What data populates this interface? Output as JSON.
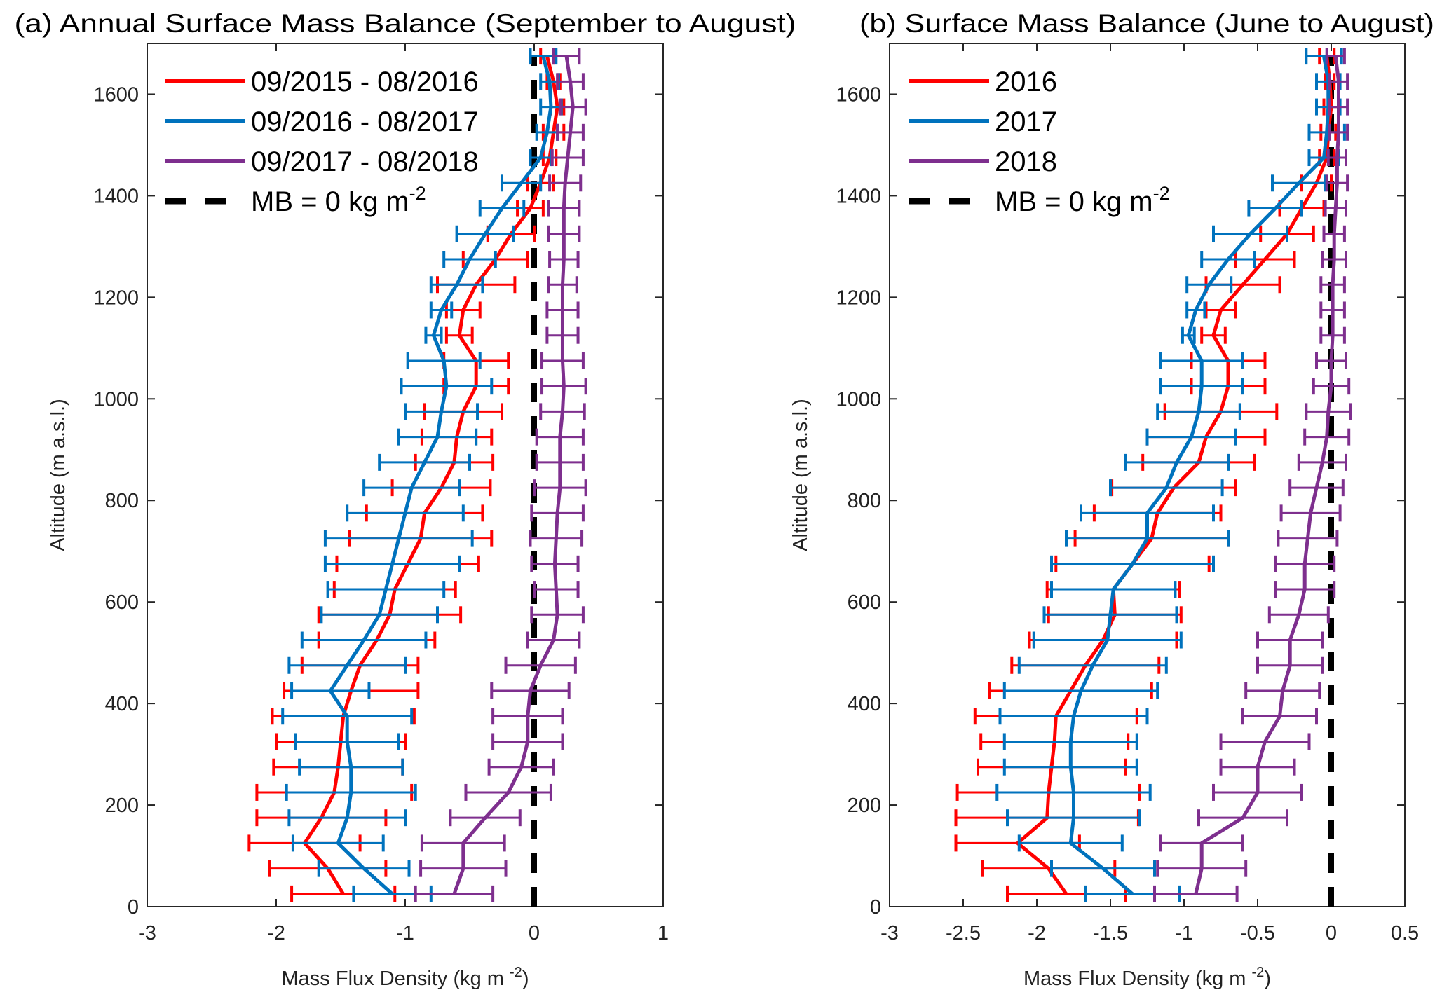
{
  "chart_data": [
    {
      "type": "line",
      "title": "(a) Annual Surface Mass Balance (September to August)",
      "xlabel": "Mass Flux Density (kg m",
      "xlabel_sup": "-2",
      "xlabel_end": ")",
      "ylabel": "Altitude (m a.s.l.)",
      "xlim": [
        -3,
        1
      ],
      "ylim": [
        0,
        1700
      ],
      "xticks": [
        -3,
        -2,
        -1,
        0,
        1
      ],
      "yticks": [
        0,
        200,
        400,
        600,
        800,
        1000,
        1200,
        1400,
        1600
      ],
      "orientation": "horizontal-profile",
      "legend_position": "top-left",
      "altitudes": [
        25,
        75,
        125,
        175,
        225,
        275,
        325,
        375,
        425,
        475,
        525,
        575,
        625,
        675,
        725,
        775,
        825,
        875,
        925,
        975,
        1025,
        1075,
        1125,
        1175,
        1225,
        1275,
        1325,
        1375,
        1425,
        1475,
        1525,
        1575,
        1625,
        1675
      ],
      "series": [
        {
          "name": "09/2015 - 08/2016",
          "color": "#ff0000",
          "values": [
            -1.48,
            -1.6,
            -1.78,
            -1.65,
            -1.55,
            -1.52,
            -1.5,
            -1.48,
            -1.42,
            -1.35,
            -1.22,
            -1.12,
            -1.08,
            -0.98,
            -0.88,
            -0.85,
            -0.72,
            -0.62,
            -0.6,
            -0.55,
            -0.45,
            -0.45,
            -0.58,
            -0.55,
            -0.45,
            -0.3,
            -0.18,
            -0.03,
            0.05,
            0.12,
            0.15,
            0.18,
            0.15,
            0.1
          ],
          "err": [
            0.4,
            0.45,
            0.43,
            0.5,
            0.6,
            0.5,
            0.5,
            0.55,
            0.52,
            0.45,
            0.45,
            0.55,
            0.47,
            0.55,
            0.55,
            0.45,
            0.38,
            0.3,
            0.27,
            0.3,
            0.25,
            0.25,
            0.1,
            0.13,
            0.3,
            0.25,
            0.18,
            0.1,
            0.1,
            0.05,
            0.08,
            0.05,
            0.05,
            0.05
          ]
        },
        {
          "name": "09/2016 - 08/2017",
          "color": "#0072bd",
          "values": [
            -1.1,
            -1.32,
            -1.52,
            -1.45,
            -1.42,
            -1.42,
            -1.45,
            -1.45,
            -1.58,
            -1.45,
            -1.32,
            -1.2,
            -1.15,
            -1.1,
            -1.05,
            -1.0,
            -0.95,
            -0.85,
            -0.75,
            -0.72,
            -0.68,
            -0.7,
            -0.78,
            -0.72,
            -0.6,
            -0.5,
            -0.38,
            -0.25,
            -0.1,
            0.05,
            0.1,
            0.13,
            0.12,
            0.07
          ],
          "err": [
            0.3,
            0.35,
            0.35,
            0.45,
            0.5,
            0.4,
            0.4,
            0.5,
            0.3,
            0.45,
            0.48,
            0.45,
            0.45,
            0.52,
            0.57,
            0.45,
            0.37,
            0.35,
            0.3,
            0.28,
            0.35,
            0.28,
            0.06,
            0.08,
            0.2,
            0.2,
            0.22,
            0.17,
            0.15,
            0.08,
            0.08,
            0.08,
            0.07,
            0.1
          ]
        },
        {
          "name": "09/2017 - 08/2018",
          "color": "#7e2f8e",
          "values": [
            -0.62,
            -0.55,
            -0.55,
            -0.38,
            -0.2,
            -0.1,
            -0.05,
            -0.05,
            -0.03,
            0.05,
            0.15,
            0.18,
            0.17,
            0.16,
            0.17,
            0.18,
            0.2,
            0.2,
            0.2,
            0.22,
            0.23,
            0.22,
            0.22,
            0.22,
            0.22,
            0.23,
            0.23,
            0.23,
            0.24,
            0.26,
            0.28,
            0.3,
            0.28,
            0.25
          ],
          "err": [
            0.3,
            0.33,
            0.32,
            0.27,
            0.33,
            0.25,
            0.27,
            0.27,
            0.3,
            0.27,
            0.2,
            0.2,
            0.17,
            0.18,
            0.2,
            0.2,
            0.2,
            0.18,
            0.18,
            0.17,
            0.17,
            0.16,
            0.12,
            0.12,
            0.11,
            0.11,
            0.12,
            0.12,
            0.12,
            0.12,
            0.1,
            0.1,
            0.1,
            0.1
          ]
        }
      ],
      "reference_line": {
        "name": "MB = 0 kg m",
        "sup": "-2",
        "x": 0,
        "color": "#000000",
        "style": "dashed"
      }
    },
    {
      "type": "line",
      "title": "(b) Surface Mass Balance (June to August)",
      "xlabel": "Mass Flux Density (kg m",
      "xlabel_sup": "-2",
      "xlabel_end": ")",
      "ylabel": "Altitude (m a.s.l.)",
      "xlim": [
        -3,
        0.5
      ],
      "ylim": [
        0,
        1700
      ],
      "xticks": [
        -3,
        -2.5,
        -2,
        -1.5,
        -1,
        -0.5,
        0,
        0.5
      ],
      "yticks": [
        0,
        200,
        400,
        600,
        800,
        1000,
        1200,
        1400,
        1600
      ],
      "orientation": "horizontal-profile",
      "legend_position": "top-left",
      "altitudes": [
        25,
        75,
        125,
        175,
        225,
        275,
        325,
        375,
        425,
        475,
        525,
        575,
        625,
        675,
        725,
        775,
        825,
        875,
        925,
        975,
        1025,
        1075,
        1125,
        1175,
        1225,
        1275,
        1325,
        1375,
        1425,
        1475,
        1525,
        1575,
        1625,
        1675
      ],
      "series": [
        {
          "name": "2016",
          "color": "#ff0000",
          "values": [
            -1.8,
            -1.92,
            -2.13,
            -1.93,
            -1.92,
            -1.9,
            -1.88,
            -1.87,
            -1.77,
            -1.67,
            -1.55,
            -1.47,
            -1.48,
            -1.35,
            -1.22,
            -1.18,
            -1.07,
            -0.9,
            -0.85,
            -0.75,
            -0.7,
            -0.7,
            -0.8,
            -0.75,
            -0.6,
            -0.45,
            -0.3,
            -0.2,
            -0.1,
            -0.03,
            -0.02,
            0.0,
            -0.01,
            -0.03
          ],
          "err": [
            0.4,
            0.45,
            0.42,
            0.62,
            0.62,
            0.5,
            0.5,
            0.55,
            0.55,
            0.5,
            0.5,
            0.45,
            0.45,
            0.52,
            0.52,
            0.43,
            0.42,
            0.38,
            0.4,
            0.38,
            0.25,
            0.25,
            0.08,
            0.1,
            0.25,
            0.2,
            0.18,
            0.15,
            0.1,
            0.05,
            0.05,
            0.05,
            0.03,
            0.05
          ]
        },
        {
          "name": "2017",
          "color": "#0072bd",
          "values": [
            -1.35,
            -1.55,
            -1.77,
            -1.75,
            -1.75,
            -1.77,
            -1.77,
            -1.75,
            -1.7,
            -1.62,
            -1.52,
            -1.5,
            -1.48,
            -1.35,
            -1.25,
            -1.25,
            -1.12,
            -1.05,
            -0.95,
            -0.9,
            -0.88,
            -0.88,
            -0.97,
            -0.92,
            -0.83,
            -0.7,
            -0.55,
            -0.38,
            -0.22,
            -0.05,
            -0.03,
            -0.02,
            -0.02,
            -0.05
          ],
          "err": [
            0.32,
            0.35,
            0.35,
            0.45,
            0.52,
            0.45,
            0.45,
            0.5,
            0.52,
            0.5,
            0.5,
            0.45,
            0.42,
            0.55,
            0.55,
            0.45,
            0.38,
            0.35,
            0.3,
            0.28,
            0.28,
            0.28,
            0.04,
            0.06,
            0.15,
            0.18,
            0.25,
            0.18,
            0.18,
            0.1,
            0.12,
            0.08,
            0.08,
            0.12
          ]
        },
        {
          "name": "2018",
          "color": "#7e2f8e",
          "values": [
            -0.92,
            -0.88,
            -0.88,
            -0.6,
            -0.5,
            -0.5,
            -0.45,
            -0.35,
            -0.33,
            -0.28,
            -0.28,
            -0.22,
            -0.18,
            -0.18,
            -0.16,
            -0.14,
            -0.1,
            -0.06,
            -0.03,
            -0.02,
            0.0,
            0.0,
            0.01,
            0.01,
            0.01,
            0.02,
            0.02,
            0.03,
            0.04,
            0.04,
            0.05,
            0.05,
            0.05,
            0.03
          ],
          "err": [
            0.28,
            0.3,
            0.28,
            0.3,
            0.3,
            0.25,
            0.3,
            0.25,
            0.25,
            0.22,
            0.22,
            0.2,
            0.2,
            0.2,
            0.2,
            0.2,
            0.18,
            0.16,
            0.15,
            0.15,
            0.12,
            0.1,
            0.08,
            0.08,
            0.08,
            0.08,
            0.07,
            0.07,
            0.07,
            0.06,
            0.06,
            0.06,
            0.06,
            0.06
          ]
        }
      ],
      "reference_line": {
        "name": "MB = 0 kg m",
        "sup": "-2",
        "x": 0,
        "color": "#000000",
        "style": "dashed"
      }
    }
  ]
}
